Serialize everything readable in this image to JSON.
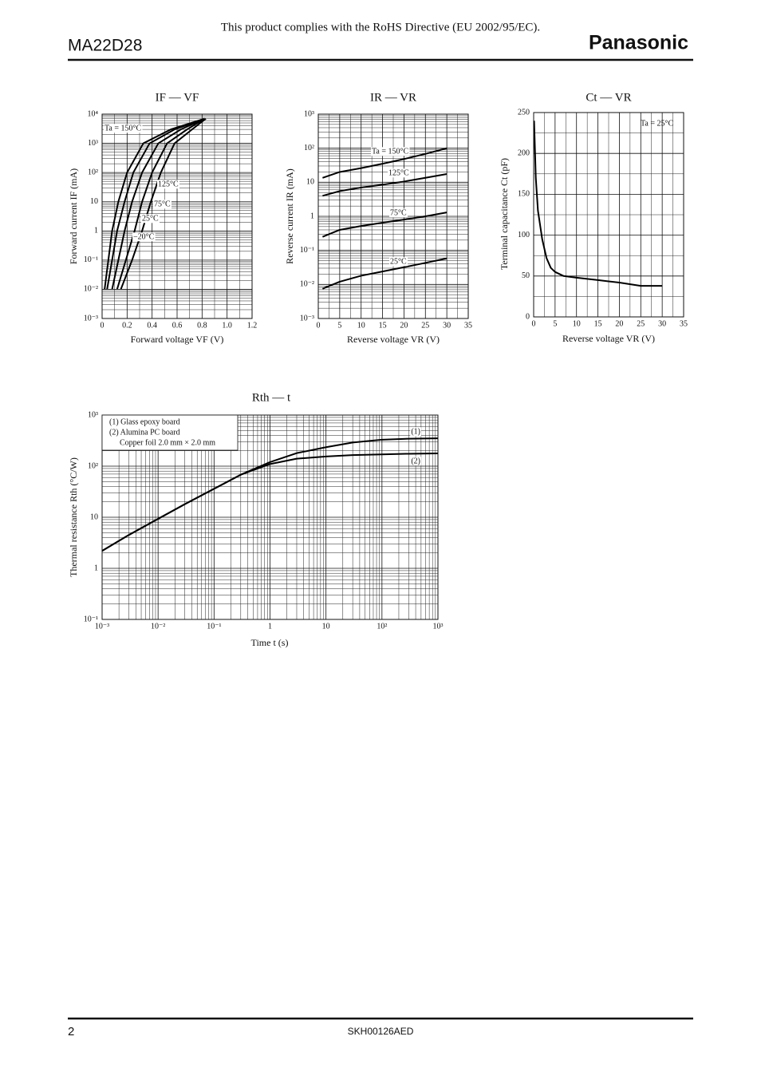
{
  "header": {
    "notice": "This product complies with the RoHS Directive (EU 2002/95/EC).",
    "part": "MA22D28",
    "brand": "Panasonic"
  },
  "footer": {
    "page": "2",
    "code": "SKH00126AED"
  },
  "chart_data": [
    {
      "type": "line",
      "title": "IF — VF",
      "x_label": "Forward voltage VF (V)",
      "y_label": "Forward current IF (mA)",
      "ylog": true,
      "grid": true,
      "minor_grid": true,
      "color": "#000000",
      "xlim": [
        0,
        1.2
      ],
      "xticks": [
        0,
        0.2,
        0.4,
        0.6,
        0.8,
        {
          "value": 1,
          "label": "1.0"
        },
        1.2
      ],
      "ylim": [
        0.001,
        10000
      ],
      "yticks": [
        {
          "value": 0.001,
          "label": "10⁻³"
        },
        {
          "value": 0.01,
          "label": "10⁻²"
        },
        {
          "value": 0.1,
          "label": "10⁻¹"
        },
        1,
        10,
        {
          "value": 100,
          "label": "10²"
        },
        {
          "value": 1000,
          "label": "10³"
        },
        {
          "value": 10000,
          "label": "10⁴"
        }
      ],
      "series": [
        {
          "name": "Ta = 150°C",
          "x": [
            0.02,
            0.05,
            0.08,
            0.13,
            0.2,
            0.33,
            0.55,
            0.82
          ],
          "values": [
            0.01,
            0.1,
            1,
            10,
            100,
            1000,
            3000,
            7000
          ]
        },
        {
          "name": "125°C",
          "x": [
            0.04,
            0.08,
            0.12,
            0.18,
            0.25,
            0.38,
            0.58,
            0.82
          ],
          "values": [
            0.01,
            0.1,
            1,
            10,
            100,
            1000,
            3000,
            7000
          ]
        },
        {
          "name": "75°C",
          "x": [
            0.08,
            0.13,
            0.18,
            0.24,
            0.32,
            0.45,
            0.63,
            0.82
          ],
          "values": [
            0.01,
            0.1,
            1,
            10,
            100,
            1000,
            3000,
            7000
          ]
        },
        {
          "name": "25°C",
          "x": [
            0.12,
            0.19,
            0.26,
            0.32,
            0.4,
            0.52,
            0.68,
            0.82
          ],
          "values": [
            0.01,
            0.1,
            1,
            10,
            100,
            1000,
            3000,
            7000
          ]
        },
        {
          "name": "−20°C",
          "x": [
            0.15,
            0.24,
            0.32,
            0.39,
            0.47,
            0.58,
            0.72,
            0.83
          ],
          "values": [
            0.01,
            0.1,
            1,
            10,
            100,
            1000,
            3000,
            7000
          ]
        }
      ]
    },
    {
      "type": "line",
      "title": "IR — VR",
      "x_label": "Reverse voltage VR (V)",
      "y_label": "Reverse current IR (mA)",
      "ylog": true,
      "grid": true,
      "minor_grid": true,
      "color": "#000000",
      "xlim": [
        0,
        35
      ],
      "xticks": [
        0,
        5,
        10,
        15,
        20,
        25,
        30,
        35
      ],
      "ylim": [
        0.001,
        1000
      ],
      "yticks": [
        {
          "value": 0.001,
          "label": "10⁻³"
        },
        {
          "value": 0.01,
          "label": "10⁻²"
        },
        {
          "value": 0.1,
          "label": "10⁻¹"
        },
        1,
        10,
        {
          "value": 100,
          "label": "10²"
        },
        {
          "value": 1000,
          "label": "10³"
        }
      ],
      "x": [
        1,
        5,
        10,
        15,
        20,
        25,
        30
      ],
      "series": [
        {
          "name": "Ta = 150°C",
          "values": [
            13.5,
            20,
            26,
            35,
            48,
            68,
            100
          ]
        },
        {
          "name": "125°C",
          "values": [
            4,
            5.5,
            7,
            8.5,
            10.5,
            13.5,
            17.5
          ]
        },
        {
          "name": "75°C",
          "values": [
            0.25,
            0.4,
            0.52,
            0.65,
            0.8,
            1.0,
            1.3
          ]
        },
        {
          "name": "25°C",
          "values": [
            0.0075,
            0.012,
            0.018,
            0.024,
            0.032,
            0.043,
            0.058
          ]
        }
      ]
    },
    {
      "type": "line",
      "title": "Ct — VR",
      "x_label": "Reverse voltage VR (V)",
      "y_label": "Terminal capacitance Ct (pF)",
      "grid": true,
      "minor_grid": true,
      "color": "#000000",
      "annotation": "Ta = 25°C",
      "xlim": [
        0,
        35
      ],
      "xticks": [
        0,
        5,
        10,
        15,
        20,
        25,
        30,
        35
      ],
      "ylim": [
        0,
        250
      ],
      "yticks": [
        0,
        50,
        100,
        150,
        200,
        250
      ],
      "x": [
        0.1,
        0.5,
        1,
        2,
        3,
        4,
        5,
        7,
        10,
        15,
        20,
        25,
        30
      ],
      "values": [
        240,
        170,
        130,
        95,
        72,
        60,
        55,
        50,
        48,
        45,
        42,
        38,
        38
      ]
    },
    {
      "type": "line",
      "title": "Rth — t",
      "x_label": "Time t (s)",
      "y_label": "Thermal resistance Rth (°C/W)",
      "xlog": true,
      "ylog": true,
      "grid": true,
      "minor_grid": true,
      "color": "#000000",
      "notes": [
        "(1) Glass epoxy board",
        "(2) Alumina PC board",
        "Copper foil 2.0 mm × 2.0 mm"
      ],
      "xlim": [
        0.001,
        1000
      ],
      "xticks": [
        {
          "value": 0.001,
          "label": "10⁻³"
        },
        {
          "value": 0.01,
          "label": "10⁻²"
        },
        {
          "value": 0.1,
          "label": "10⁻¹"
        },
        1,
        10,
        {
          "value": 100,
          "label": "10²"
        },
        {
          "value": 1000,
          "label": "10³"
        }
      ],
      "ylim": [
        0.1,
        1000
      ],
      "yticks": [
        {
          "value": 0.1,
          "label": "10⁻¹"
        },
        1,
        10,
        {
          "value": 100,
          "label": "10²"
        },
        {
          "value": 1000,
          "label": "10³"
        }
      ],
      "x": [
        0.001,
        0.003,
        0.01,
        0.03,
        0.1,
        0.3,
        1,
        3,
        10,
        30,
        100,
        300,
        1000
      ],
      "series": [
        {
          "name": "(1)",
          "values": [
            2.2,
            4.5,
            9.3,
            18,
            36,
            68,
            120,
            180,
            235,
            290,
            330,
            345,
            350
          ]
        },
        {
          "name": "(2)",
          "values": [
            2.2,
            4.5,
            9.3,
            18,
            36,
            68,
            110,
            140,
            155,
            165,
            170,
            175,
            178
          ]
        }
      ]
    }
  ]
}
